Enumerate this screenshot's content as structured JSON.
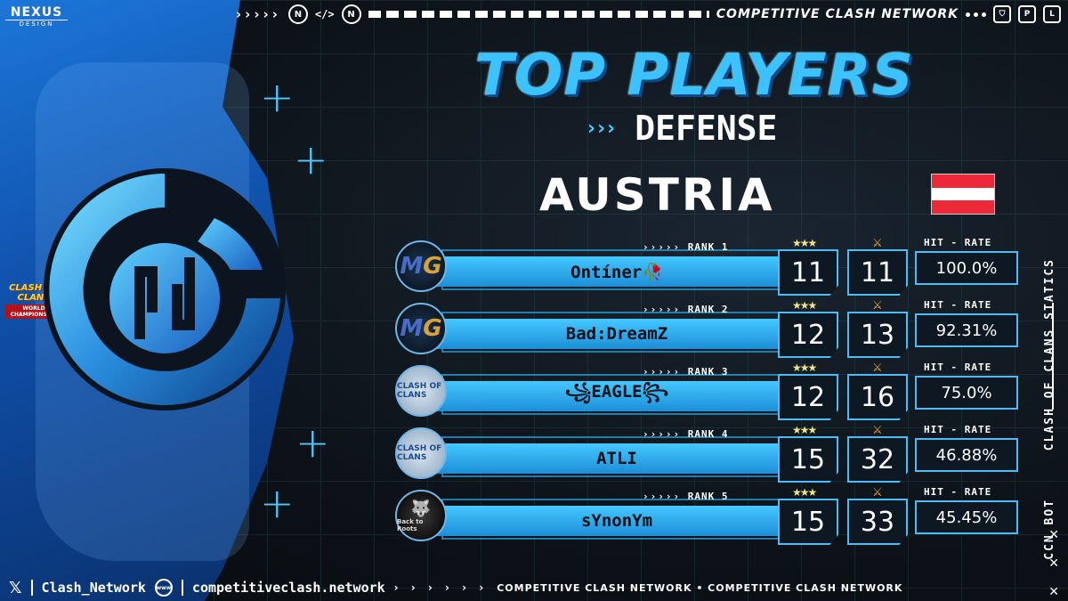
{
  "brand": {
    "line1": "NEXUS",
    "line2": "DESIGN"
  },
  "topbar": {
    "code_tag": "</>",
    "title": "COMPETITIVE CLASH NETWORK"
  },
  "side": {
    "vertical_text": "CLASH OF CLANS STATICS",
    "bot_text": "CCN BOT"
  },
  "badge": {
    "line1": "CLASH OF CLANS",
    "line2": "WORLD CHAMPIONSHIP"
  },
  "header": {
    "title": "TOP PLAYERS",
    "subtitle": "DEFENSE",
    "country": "AUSTRIA"
  },
  "colors": {
    "accent": "#3cc3ff",
    "flag_red": "#ed2939",
    "flag_white": "#ffffff"
  },
  "hit_rate_label": "HIT - RATE",
  "players": [
    {
      "rank_label": "RANK 1",
      "name": "Ontíner🥀",
      "defenses": "11",
      "stars": "11",
      "hit_rate": "100.0%",
      "avatar": "MG"
    },
    {
      "rank_label": "RANK 2",
      "name": "Bad:DreamZ",
      "defenses": "12",
      "stars": "13",
      "hit_rate": "92.31%",
      "avatar": "MG"
    },
    {
      "rank_label": "RANK 3",
      "name": "꧁EAGLE꧂",
      "defenses": "12",
      "stars": "16",
      "hit_rate": "75.0%",
      "avatar": "CLASH OF CLANS"
    },
    {
      "rank_label": "RANK 4",
      "name": "ATLI",
      "defenses": "15",
      "stars": "32",
      "hit_rate": "46.88%",
      "avatar": "CLASH OF CLANS"
    },
    {
      "rank_label": "RANK 5",
      "name": "sYnonYm",
      "defenses": "15",
      "stars": "33",
      "hit_rate": "45.45%",
      "avatar": "Back to Roots"
    }
  ],
  "footer": {
    "x_icon": "𝕏",
    "handle": "Clash_Network",
    "www": "www",
    "site": "competitiveclash.network",
    "marquee": "COMPETITIVE CLASH NETWORK • COMPETITIVE CLASH NETWORK"
  }
}
